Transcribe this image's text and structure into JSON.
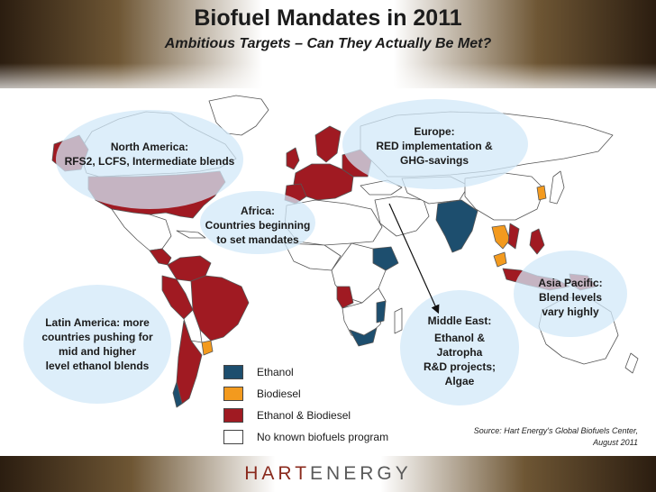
{
  "title": "Biofuel Mandates in 2011",
  "subtitle": "Ambitious Targets – Can They Actually Be Met?",
  "colors": {
    "ethanol": "#1d4e6e",
    "biodiesel": "#f39a1e",
    "ethanol_biodiesel": "#a01a22",
    "none": "#ffffff",
    "bubble": "#d2e8f8"
  },
  "regions": [
    {
      "id": "north-america",
      "lines": [
        "North America:",
        "RFS2, LCFS, Intermediate blends"
      ]
    },
    {
      "id": "europe",
      "lines": [
        "Europe:",
        "RED implementation &",
        "GHG-savings"
      ]
    },
    {
      "id": "africa",
      "lines": [
        "Africa:",
        "Countries beginning",
        "to set mandates"
      ]
    },
    {
      "id": "latin-america",
      "lines": [
        "Latin America: more",
        "countries pushing for",
        "mid and higher",
        "level ethanol blends"
      ]
    },
    {
      "id": "middle-east",
      "lines": [
        "Middle East:",
        "Ethanol &",
        "Jatropha",
        "R&D projects;",
        "Algae"
      ]
    },
    {
      "id": "asia-pacific",
      "lines": [
        "Asia Pacific:",
        "Blend levels",
        "vary highly"
      ]
    }
  ],
  "legend": [
    {
      "label": "Ethanol",
      "color_key": "ethanol"
    },
    {
      "label": "Biodiesel",
      "color_key": "biodiesel"
    },
    {
      "label": "Ethanol & Biodiesel",
      "color_key": "ethanol_biodiesel"
    },
    {
      "label": "No known biofuels program",
      "color_key": "none"
    }
  ],
  "source": [
    "Source: Hart Energy's Global Biofuels Center,",
    "August 2011"
  ],
  "logo": {
    "part1": "HART",
    "part2": "ENERGY"
  }
}
